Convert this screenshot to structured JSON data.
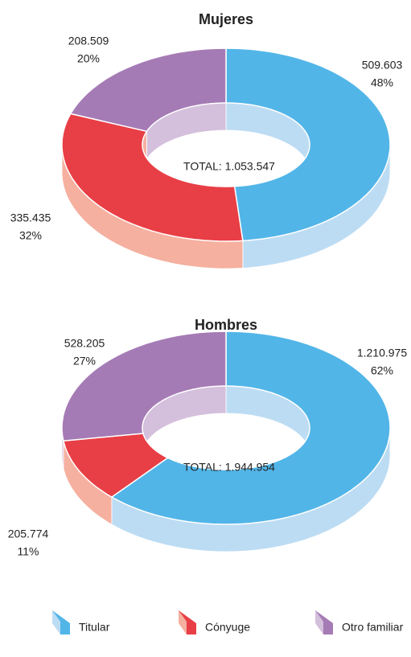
{
  "chart_data": [
    {
      "type": "donut3d",
      "title": "Mujeres",
      "categories": [
        "Titular",
        "Cónyuge",
        "Otro familiar"
      ],
      "values": [
        509603,
        335435,
        208509
      ],
      "value_labels": [
        "509.603",
        "335.435",
        "208.509"
      ],
      "percentages": [
        48,
        32,
        20
      ],
      "percentage_labels": [
        "48%",
        "32%",
        "20%"
      ],
      "total_label": "TOTAL: 1.053.547",
      "colors": [
        "#52b5e8",
        "#e83e45",
        "#a57bb5"
      ],
      "side_colors": [
        "#bcdcf3",
        "#f5b0a0",
        "#d4bfdc"
      ]
    },
    {
      "type": "donut3d",
      "title": "Hombres",
      "categories": [
        "Titular",
        "Cónyuge",
        "Otro familiar"
      ],
      "values": [
        1210975,
        205774,
        528205
      ],
      "value_labels": [
        "1.210.975",
        "205.774",
        "528.205"
      ],
      "percentages": [
        62,
        11,
        27
      ],
      "percentage_labels": [
        "62%",
        "11%",
        "27%"
      ],
      "total_label": "TOTAL: 1.944.954",
      "colors": [
        "#52b5e8",
        "#e83e45",
        "#a57bb5"
      ],
      "side_colors": [
        "#bcdcf3",
        "#f5b0a0",
        "#d4bfdc"
      ]
    }
  ]
}
